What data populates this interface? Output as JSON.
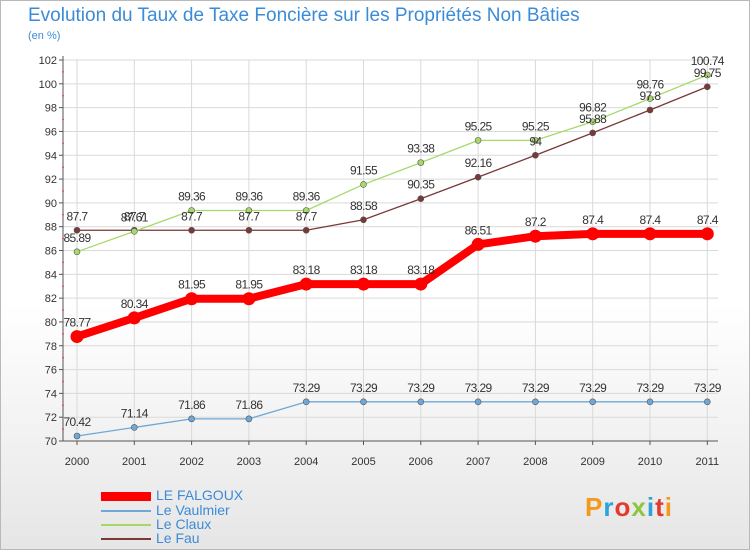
{
  "header": {
    "title": "Evolution du Taux de Taxe Foncière sur les Propriétés Non Bâties",
    "unit": "(en %)"
  },
  "logo": {
    "text": "Proxiti",
    "colors": [
      "#f39a1e",
      "#2aa3da",
      "#e23b2e",
      "#8cc63f",
      "#2aa3da",
      "#e23b2e",
      "#f39a1e"
    ]
  },
  "chart_data": {
    "type": "line",
    "title": "Evolution du Taux de Taxe Foncière sur les Propriétés Non Bâties",
    "ylabel": "(en %)",
    "xlabel": "",
    "ylim": [
      70,
      102
    ],
    "yticks": [
      70,
      72,
      74,
      76,
      78,
      80,
      82,
      84,
      86,
      88,
      90,
      92,
      94,
      96,
      98,
      100,
      102
    ],
    "categories": [
      "2000",
      "2001",
      "2002",
      "2003",
      "2004",
      "2005",
      "2006",
      "2007",
      "2008",
      "2009",
      "2010",
      "2011"
    ],
    "series": [
      {
        "name": "LE FALGOUX",
        "color": "#ff0000",
        "labels": [
          "78.77",
          "80.34",
          "81.95",
          "81.95",
          "83.18",
          "83.18",
          "83.18",
          "86.51",
          "87.2",
          "87.4",
          "87.4",
          "87.4"
        ],
        "values": [
          78.77,
          80.34,
          81.95,
          81.95,
          83.18,
          83.18,
          83.18,
          86.51,
          87.2,
          87.4,
          87.4,
          87.4
        ]
      },
      {
        "name": "Le Vaulmier",
        "color": "#6fa8d8",
        "labels": [
          "70.42",
          "71.14",
          "71.86",
          "71.86",
          "73.29",
          "73.29",
          "73.29",
          "73.29",
          "73.29",
          "73.29",
          "73.29",
          "73.29"
        ],
        "values": [
          70.42,
          71.14,
          71.86,
          71.86,
          73.29,
          73.29,
          73.29,
          73.29,
          73.29,
          73.29,
          73.29,
          73.29
        ]
      },
      {
        "name": "Le Claux",
        "color": "#a6d96a",
        "labels": [
          "85.89",
          "87.61",
          "89.36",
          "89.36",
          "89.36",
          "91.55",
          "93.38",
          "95.25",
          "95.25",
          "96.82",
          "98.76",
          "100.74"
        ],
        "values": [
          85.89,
          87.61,
          89.36,
          89.36,
          89.36,
          91.55,
          93.38,
          95.25,
          95.25,
          96.82,
          98.76,
          100.74
        ]
      },
      {
        "name": "Le Fau",
        "color": "#7a3838",
        "labels": [
          "87.7",
          "87.7",
          "87.7",
          "87.7",
          "87.7",
          "88.58",
          "90.35",
          "92.16",
          "94",
          "95.88",
          "97.8",
          "99.75"
        ],
        "values": [
          87.7,
          87.7,
          87.7,
          87.7,
          87.7,
          88.58,
          90.35,
          92.16,
          94,
          95.88,
          97.8,
          99.75
        ]
      }
    ],
    "legend": [
      "LE FALGOUX",
      "Le Vaulmier",
      "Le Claux",
      "Le Fau"
    ],
    "grid": true,
    "legend_position": "bottom-left"
  }
}
